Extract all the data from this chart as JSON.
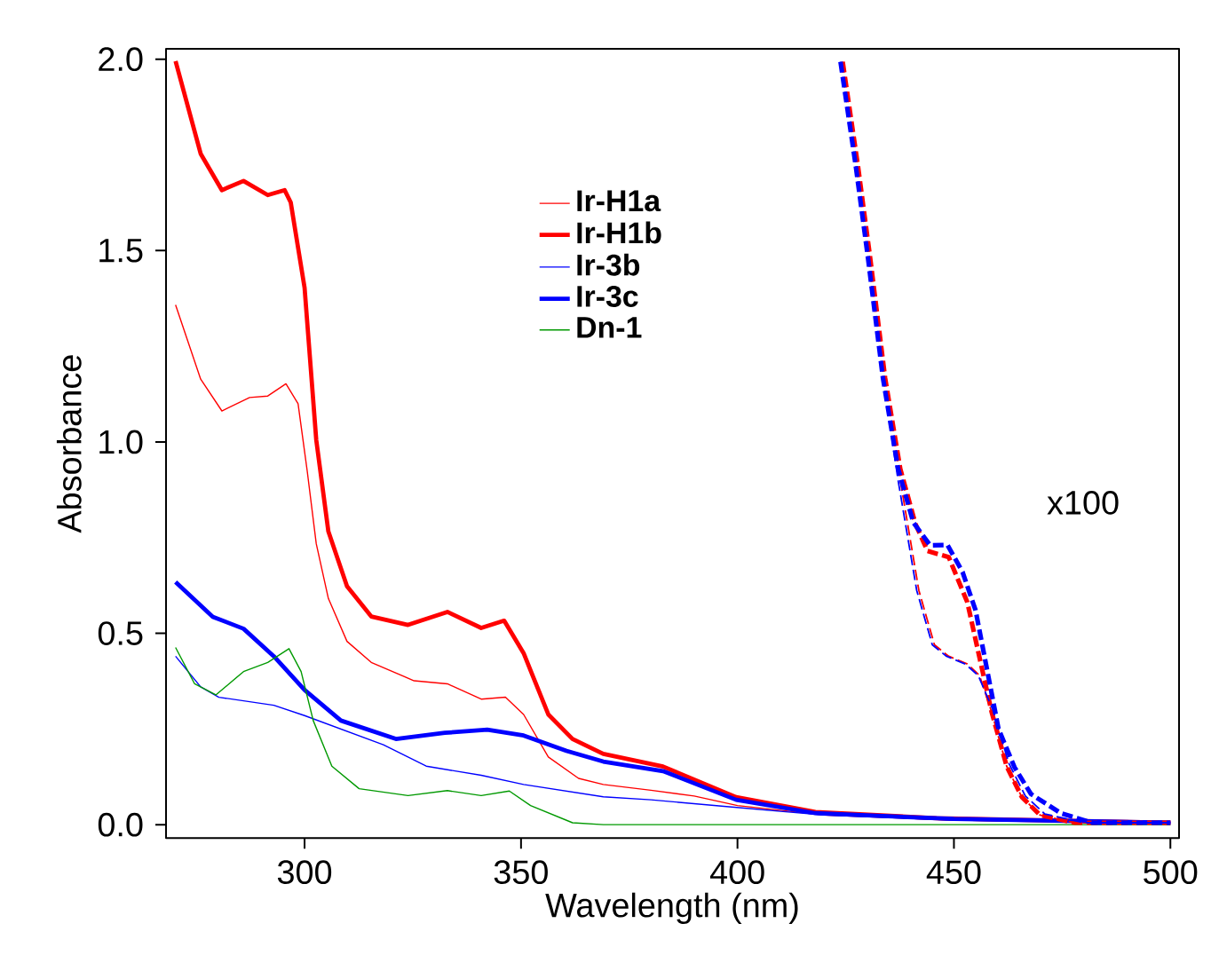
{
  "chart_data": {
    "type": "line",
    "xlabel": "Wavelength (nm)",
    "ylabel": "Absorbance",
    "xlim": [
      268,
      502
    ],
    "ylim": [
      -0.035,
      2.027
    ],
    "xticks": [
      300,
      350,
      400,
      450,
      500
    ],
    "yticks": [
      {
        "value": 0,
        "label": "0.0"
      },
      {
        "value": 0.5,
        "label": "0.5"
      },
      {
        "value": 1,
        "label": "1.0"
      },
      {
        "value": 1.5,
        "label": "1.5"
      },
      {
        "value": 2,
        "label": "2.0"
      }
    ],
    "grid": false,
    "legend": "top",
    "marker": "none",
    "line_style": "solid",
    "annotations": [
      "x100"
    ],
    "series": [
      {
        "name": "Ir-H1a",
        "color": "#ff0000",
        "x": [
          270.2,
          276,
          280.9,
          287.3,
          291.5,
          295.7,
          298.5,
          300.6,
          302.7,
          305.5,
          309.8,
          315.4,
          325.3,
          333,
          340.8,
          346.4,
          350.6,
          356.3,
          363.3,
          369,
          380,
          390,
          400,
          420,
          450,
          500
        ],
        "values": [
          1.358,
          1.164,
          1.081,
          1.116,
          1.12,
          1.152,
          1.1,
          0.925,
          0.734,
          0.591,
          0.479,
          0.424,
          0.376,
          0.368,
          0.328,
          0.333,
          0.288,
          0.177,
          0.121,
          0.105,
          0.09,
          0.075,
          0.05,
          0.025,
          0.012,
          0.005
        ]
      },
      {
        "name": "Ir-H1b",
        "color": "#ff0000",
        "x": [
          270.2,
          276,
          280.9,
          285.9,
          291.5,
          295.4,
          296.8,
          300,
          302.7,
          305.5,
          309.8,
          315.4,
          323.9,
          333,
          340.8,
          346.1,
          350.6,
          356.3,
          361.9,
          369,
          382.8,
          399.7,
          418,
          446,
          500
        ],
        "values": [
          1.995,
          1.753,
          1.658,
          1.682,
          1.645,
          1.658,
          1.626,
          1.403,
          1.005,
          0.766,
          0.623,
          0.544,
          0.522,
          0.556,
          0.514,
          0.533,
          0.448,
          0.288,
          0.224,
          0.185,
          0.152,
          0.072,
          0.033,
          0.017,
          0.005
        ]
      },
      {
        "name": "Ir-3b",
        "color": "#0000ff",
        "x": [
          270.2,
          276,
          280.2,
          292.9,
          300,
          318.2,
          328.1,
          340.8,
          350.6,
          369,
          380,
          396.9,
          420,
          450,
          500
        ],
        "values": [
          0.44,
          0.36,
          0.333,
          0.312,
          0.285,
          0.209,
          0.153,
          0.129,
          0.105,
          0.073,
          0.065,
          0.048,
          0.025,
          0.012,
          0.005
        ]
      },
      {
        "name": "Ir-3c",
        "color": "#0000ff",
        "x": [
          270.2,
          278.8,
          285.9,
          292.9,
          300,
          308.4,
          321.1,
          332.4,
          342.2,
          350.6,
          360.5,
          369,
          382.8,
          399.7,
          418,
          450,
          500
        ],
        "values": [
          0.634,
          0.543,
          0.512,
          0.44,
          0.352,
          0.272,
          0.224,
          0.24,
          0.248,
          0.233,
          0.193,
          0.165,
          0.14,
          0.065,
          0.03,
          0.015,
          0.005
        ]
      },
      {
        "name": "Dn-1",
        "color": "#009900",
        "x": [
          270.2,
          274.6,
          279.5,
          285.9,
          291.5,
          296.4,
          299.2,
          302,
          306.3,
          312.6,
          323.9,
          333,
          340.8,
          347.3,
          352.2,
          361.9,
          369,
          400,
          450,
          500
        ],
        "values": [
          0.463,
          0.368,
          0.339,
          0.4,
          0.424,
          0.46,
          0.4,
          0.272,
          0.153,
          0.094,
          0.076,
          0.089,
          0.076,
          0.088,
          0.05,
          0.005,
          0.0,
          0.0,
          0.0,
          0.0
        ]
      },
      {
        "color": "#ff0000",
        "line_style": "dashed",
        "x": [
          424.3,
          427.8,
          430.6,
          434.1,
          437.6,
          441.9,
          445.5,
          448.8,
          453.1,
          455.9,
          458.7,
          462.2,
          465.7,
          469.9,
          478,
          500
        ],
        "values": [
          1.993,
          1.723,
          1.485,
          1.167,
          0.9,
          0.612,
          0.47,
          0.44,
          0.42,
          0.39,
          0.295,
          0.152,
          0.072,
          0.025,
          0.005,
          0.005
        ]
      },
      {
        "color": "#ff0000",
        "line_style": "dashed",
        "x": [
          424.3,
          427.8,
          430.6,
          434.1,
          437.6,
          441.1,
          443.9,
          448.8,
          453.1,
          455.9,
          458.7,
          462.2,
          465.7,
          469.9,
          478,
          500
        ],
        "values": [
          1.993,
          1.723,
          1.485,
          1.167,
          0.93,
          0.786,
          0.715,
          0.699,
          0.581,
          0.437,
          0.295,
          0.152,
          0.072,
          0.025,
          0.005,
          0.005
        ]
      },
      {
        "color": "#0000ff",
        "line_style": "dashed",
        "x": [
          423.8,
          427.3,
          430.1,
          433.6,
          437.1,
          441.4,
          445,
          448.3,
          452.6,
          455.6,
          459,
          462.7,
          466.5,
          471,
          480,
          500
        ],
        "values": [
          1.993,
          1.723,
          1.485,
          1.167,
          0.9,
          0.612,
          0.47,
          0.44,
          0.42,
          0.39,
          0.3,
          0.16,
          0.075,
          0.028,
          0.005,
          0.005
        ]
      },
      {
        "color": "#0000ff",
        "line_style": "dashed",
        "x": [
          423.8,
          427.3,
          430.1,
          433.6,
          437.1,
          440.6,
          444.5,
          448.5,
          452,
          455,
          460.3,
          464,
          467.8,
          474.7,
          482,
          500
        ],
        "values": [
          1.993,
          1.723,
          1.485,
          1.167,
          0.93,
          0.79,
          0.73,
          0.731,
          0.66,
          0.56,
          0.25,
          0.15,
          0.08,
          0.03,
          0.005,
          0.005
        ]
      }
    ]
  }
}
